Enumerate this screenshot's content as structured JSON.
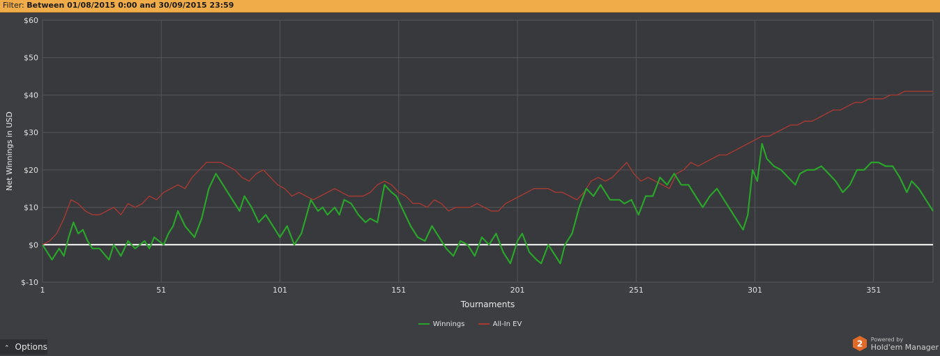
{
  "filter": {
    "label": "Filter:",
    "text": "Between 01/08/2015 0:00 and 30/09/2015 23:59"
  },
  "options": {
    "label": "Options"
  },
  "branding": {
    "powered_by": "Powered by",
    "name": "Hold'em Manager",
    "logo_text": "2"
  },
  "colors": {
    "background": "#3c3e42",
    "plot_bg": "#37393d",
    "winnings": "#2aa52a",
    "allin_ev": "#a83a32",
    "zero_line": "#ffffff",
    "filter_bar": "#f0ac48"
  },
  "chart_data": {
    "type": "line",
    "xlabel": "Tournaments",
    "ylabel": "Net Winnings in USD",
    "xlim": [
      1,
      376
    ],
    "ylim": [
      -10,
      60
    ],
    "x_ticks": [
      "1",
      "51",
      "101",
      "151",
      "201",
      "251",
      "301",
      "351"
    ],
    "y_ticks": [
      "$-10",
      "$0",
      "$10",
      "$20",
      "$30",
      "$40",
      "$50",
      "$60"
    ],
    "grid": true,
    "legend_position": "bottom-center",
    "series": [
      {
        "name": "Winnings",
        "color": "#2aa52a",
        "points": [
          [
            1,
            0
          ],
          [
            5,
            -4
          ],
          [
            8,
            -1
          ],
          [
            10,
            -3
          ],
          [
            12,
            2
          ],
          [
            14,
            6
          ],
          [
            16,
            3
          ],
          [
            18,
            4
          ],
          [
            20,
            1
          ],
          [
            22,
            -1
          ],
          [
            25,
            -1
          ],
          [
            29,
            -4
          ],
          [
            31,
            0
          ],
          [
            34,
            -3
          ],
          [
            37,
            1
          ],
          [
            40,
            -1
          ],
          [
            42,
            0
          ],
          [
            44,
            1
          ],
          [
            46,
            -1
          ],
          [
            48,
            2
          ],
          [
            52,
            0
          ],
          [
            54,
            3
          ],
          [
            56,
            5
          ],
          [
            58,
            9
          ],
          [
            61,
            5
          ],
          [
            65,
            2
          ],
          [
            68,
            7
          ],
          [
            71,
            15
          ],
          [
            74,
            19
          ],
          [
            77,
            16
          ],
          [
            80,
            13
          ],
          [
            84,
            9
          ],
          [
            86,
            13
          ],
          [
            89,
            10
          ],
          [
            92,
            6
          ],
          [
            95,
            8
          ],
          [
            98,
            5
          ],
          [
            101,
            2
          ],
          [
            104,
            5
          ],
          [
            107,
            0
          ],
          [
            110,
            3
          ],
          [
            114,
            12
          ],
          [
            117,
            9
          ],
          [
            119,
            10
          ],
          [
            121,
            8
          ],
          [
            124,
            10
          ],
          [
            126,
            8
          ],
          [
            128,
            12
          ],
          [
            131,
            11
          ],
          [
            134,
            8
          ],
          [
            137,
            6
          ],
          [
            139,
            7
          ],
          [
            142,
            6
          ],
          [
            145,
            16
          ],
          [
            148,
            14
          ],
          [
            150,
            13
          ],
          [
            153,
            9
          ],
          [
            156,
            5
          ],
          [
            159,
            2
          ],
          [
            162,
            1
          ],
          [
            165,
            5
          ],
          [
            168,
            2
          ],
          [
            171,
            -1
          ],
          [
            174,
            -3
          ],
          [
            177,
            1
          ],
          [
            180,
            0
          ],
          [
            183,
            -3
          ],
          [
            186,
            2
          ],
          [
            189,
            0
          ],
          [
            192,
            3
          ],
          [
            195,
            -2
          ],
          [
            198,
            -5
          ],
          [
            201,
            1
          ],
          [
            203,
            3
          ],
          [
            206,
            -2
          ],
          [
            209,
            -4
          ],
          [
            211,
            -5
          ],
          [
            214,
            0
          ],
          [
            217,
            -3
          ],
          [
            219,
            -5
          ],
          [
            221,
            0
          ],
          [
            224,
            3
          ],
          [
            227,
            10
          ],
          [
            230,
            15
          ],
          [
            233,
            13
          ],
          [
            236,
            16
          ],
          [
            240,
            12
          ],
          [
            244,
            12
          ],
          [
            246,
            11
          ],
          [
            249,
            12
          ],
          [
            252,
            8
          ],
          [
            255,
            13
          ],
          [
            258,
            13
          ],
          [
            261,
            18
          ],
          [
            264,
            16
          ],
          [
            267,
            19
          ],
          [
            270,
            16
          ],
          [
            273,
            16
          ],
          [
            276,
            13
          ],
          [
            279,
            10
          ],
          [
            282,
            13
          ],
          [
            285,
            15
          ],
          [
            288,
            12
          ],
          [
            291,
            9
          ],
          [
            294,
            6
          ],
          [
            296,
            4
          ],
          [
            298,
            8
          ],
          [
            300,
            20
          ],
          [
            302,
            17
          ],
          [
            304,
            27
          ],
          [
            306,
            23
          ],
          [
            309,
            21
          ],
          [
            312,
            20
          ],
          [
            315,
            18
          ],
          [
            318,
            16
          ],
          [
            320,
            19
          ],
          [
            323,
            20
          ],
          [
            326,
            20
          ],
          [
            329,
            21
          ],
          [
            332,
            19
          ],
          [
            335,
            17
          ],
          [
            338,
            14
          ],
          [
            341,
            16
          ],
          [
            344,
            20
          ],
          [
            347,
            20
          ],
          [
            350,
            22
          ],
          [
            353,
            22
          ],
          [
            356,
            21
          ],
          [
            359,
            21
          ],
          [
            362,
            18
          ],
          [
            365,
            14
          ],
          [
            367,
            17
          ],
          [
            370,
            15
          ],
          [
            373,
            12
          ],
          [
            376,
            9
          ]
        ]
      },
      {
        "name": "All-In EV",
        "color": "#a83a32",
        "points": [
          [
            1,
            0
          ],
          [
            4,
            1
          ],
          [
            7,
            3
          ],
          [
            10,
            7
          ],
          [
            13,
            12
          ],
          [
            16,
            11
          ],
          [
            19,
            9
          ],
          [
            22,
            8
          ],
          [
            25,
            8
          ],
          [
            28,
            9
          ],
          [
            31,
            10
          ],
          [
            34,
            8
          ],
          [
            37,
            11
          ],
          [
            40,
            10
          ],
          [
            43,
            11
          ],
          [
            46,
            13
          ],
          [
            49,
            12
          ],
          [
            52,
            14
          ],
          [
            55,
            15
          ],
          [
            58,
            16
          ],
          [
            61,
            15
          ],
          [
            64,
            18
          ],
          [
            67,
            20
          ],
          [
            70,
            22
          ],
          [
            73,
            22
          ],
          [
            76,
            22
          ],
          [
            79,
            21
          ],
          [
            82,
            20
          ],
          [
            85,
            18
          ],
          [
            88,
            17
          ],
          [
            91,
            19
          ],
          [
            94,
            20
          ],
          [
            97,
            18
          ],
          [
            100,
            16
          ],
          [
            103,
            15
          ],
          [
            106,
            13
          ],
          [
            109,
            14
          ],
          [
            112,
            13
          ],
          [
            115,
            12
          ],
          [
            118,
            13
          ],
          [
            121,
            14
          ],
          [
            124,
            15
          ],
          [
            127,
            14
          ],
          [
            130,
            13
          ],
          [
            133,
            13
          ],
          [
            136,
            13
          ],
          [
            139,
            14
          ],
          [
            142,
            16
          ],
          [
            145,
            17
          ],
          [
            148,
            16
          ],
          [
            151,
            14
          ],
          [
            154,
            13
          ],
          [
            157,
            11
          ],
          [
            160,
            11
          ],
          [
            163,
            10
          ],
          [
            166,
            12
          ],
          [
            169,
            11
          ],
          [
            172,
            9
          ],
          [
            175,
            10
          ],
          [
            178,
            10
          ],
          [
            181,
            10
          ],
          [
            184,
            11
          ],
          [
            187,
            10
          ],
          [
            190,
            9
          ],
          [
            193,
            9
          ],
          [
            196,
            11
          ],
          [
            199,
            12
          ],
          [
            202,
            13
          ],
          [
            205,
            14
          ],
          [
            208,
            15
          ],
          [
            211,
            15
          ],
          [
            214,
            15
          ],
          [
            217,
            14
          ],
          [
            220,
            14
          ],
          [
            223,
            13
          ],
          [
            226,
            12
          ],
          [
            229,
            14
          ],
          [
            232,
            17
          ],
          [
            235,
            18
          ],
          [
            238,
            17
          ],
          [
            241,
            18
          ],
          [
            244,
            20
          ],
          [
            247,
            22
          ],
          [
            250,
            19
          ],
          [
            253,
            17
          ],
          [
            256,
            18
          ],
          [
            259,
            17
          ],
          [
            262,
            16
          ],
          [
            265,
            15
          ],
          [
            268,
            19
          ],
          [
            271,
            20
          ],
          [
            274,
            22
          ],
          [
            277,
            21
          ],
          [
            280,
            22
          ],
          [
            283,
            23
          ],
          [
            286,
            24
          ],
          [
            289,
            24
          ],
          [
            292,
            25
          ],
          [
            295,
            26
          ],
          [
            298,
            27
          ],
          [
            301,
            28
          ],
          [
            304,
            29
          ],
          [
            307,
            29
          ],
          [
            310,
            30
          ],
          [
            313,
            31
          ],
          [
            316,
            32
          ],
          [
            319,
            32
          ],
          [
            322,
            33
          ],
          [
            325,
            33
          ],
          [
            328,
            34
          ],
          [
            331,
            35
          ],
          [
            334,
            36
          ],
          [
            337,
            36
          ],
          [
            340,
            37
          ],
          [
            343,
            38
          ],
          [
            346,
            38
          ],
          [
            349,
            39
          ],
          [
            352,
            39
          ],
          [
            355,
            39
          ],
          [
            358,
            40
          ],
          [
            361,
            40
          ],
          [
            364,
            41
          ],
          [
            367,
            41
          ],
          [
            370,
            41
          ],
          [
            373,
            41
          ],
          [
            376,
            41
          ]
        ]
      }
    ]
  }
}
